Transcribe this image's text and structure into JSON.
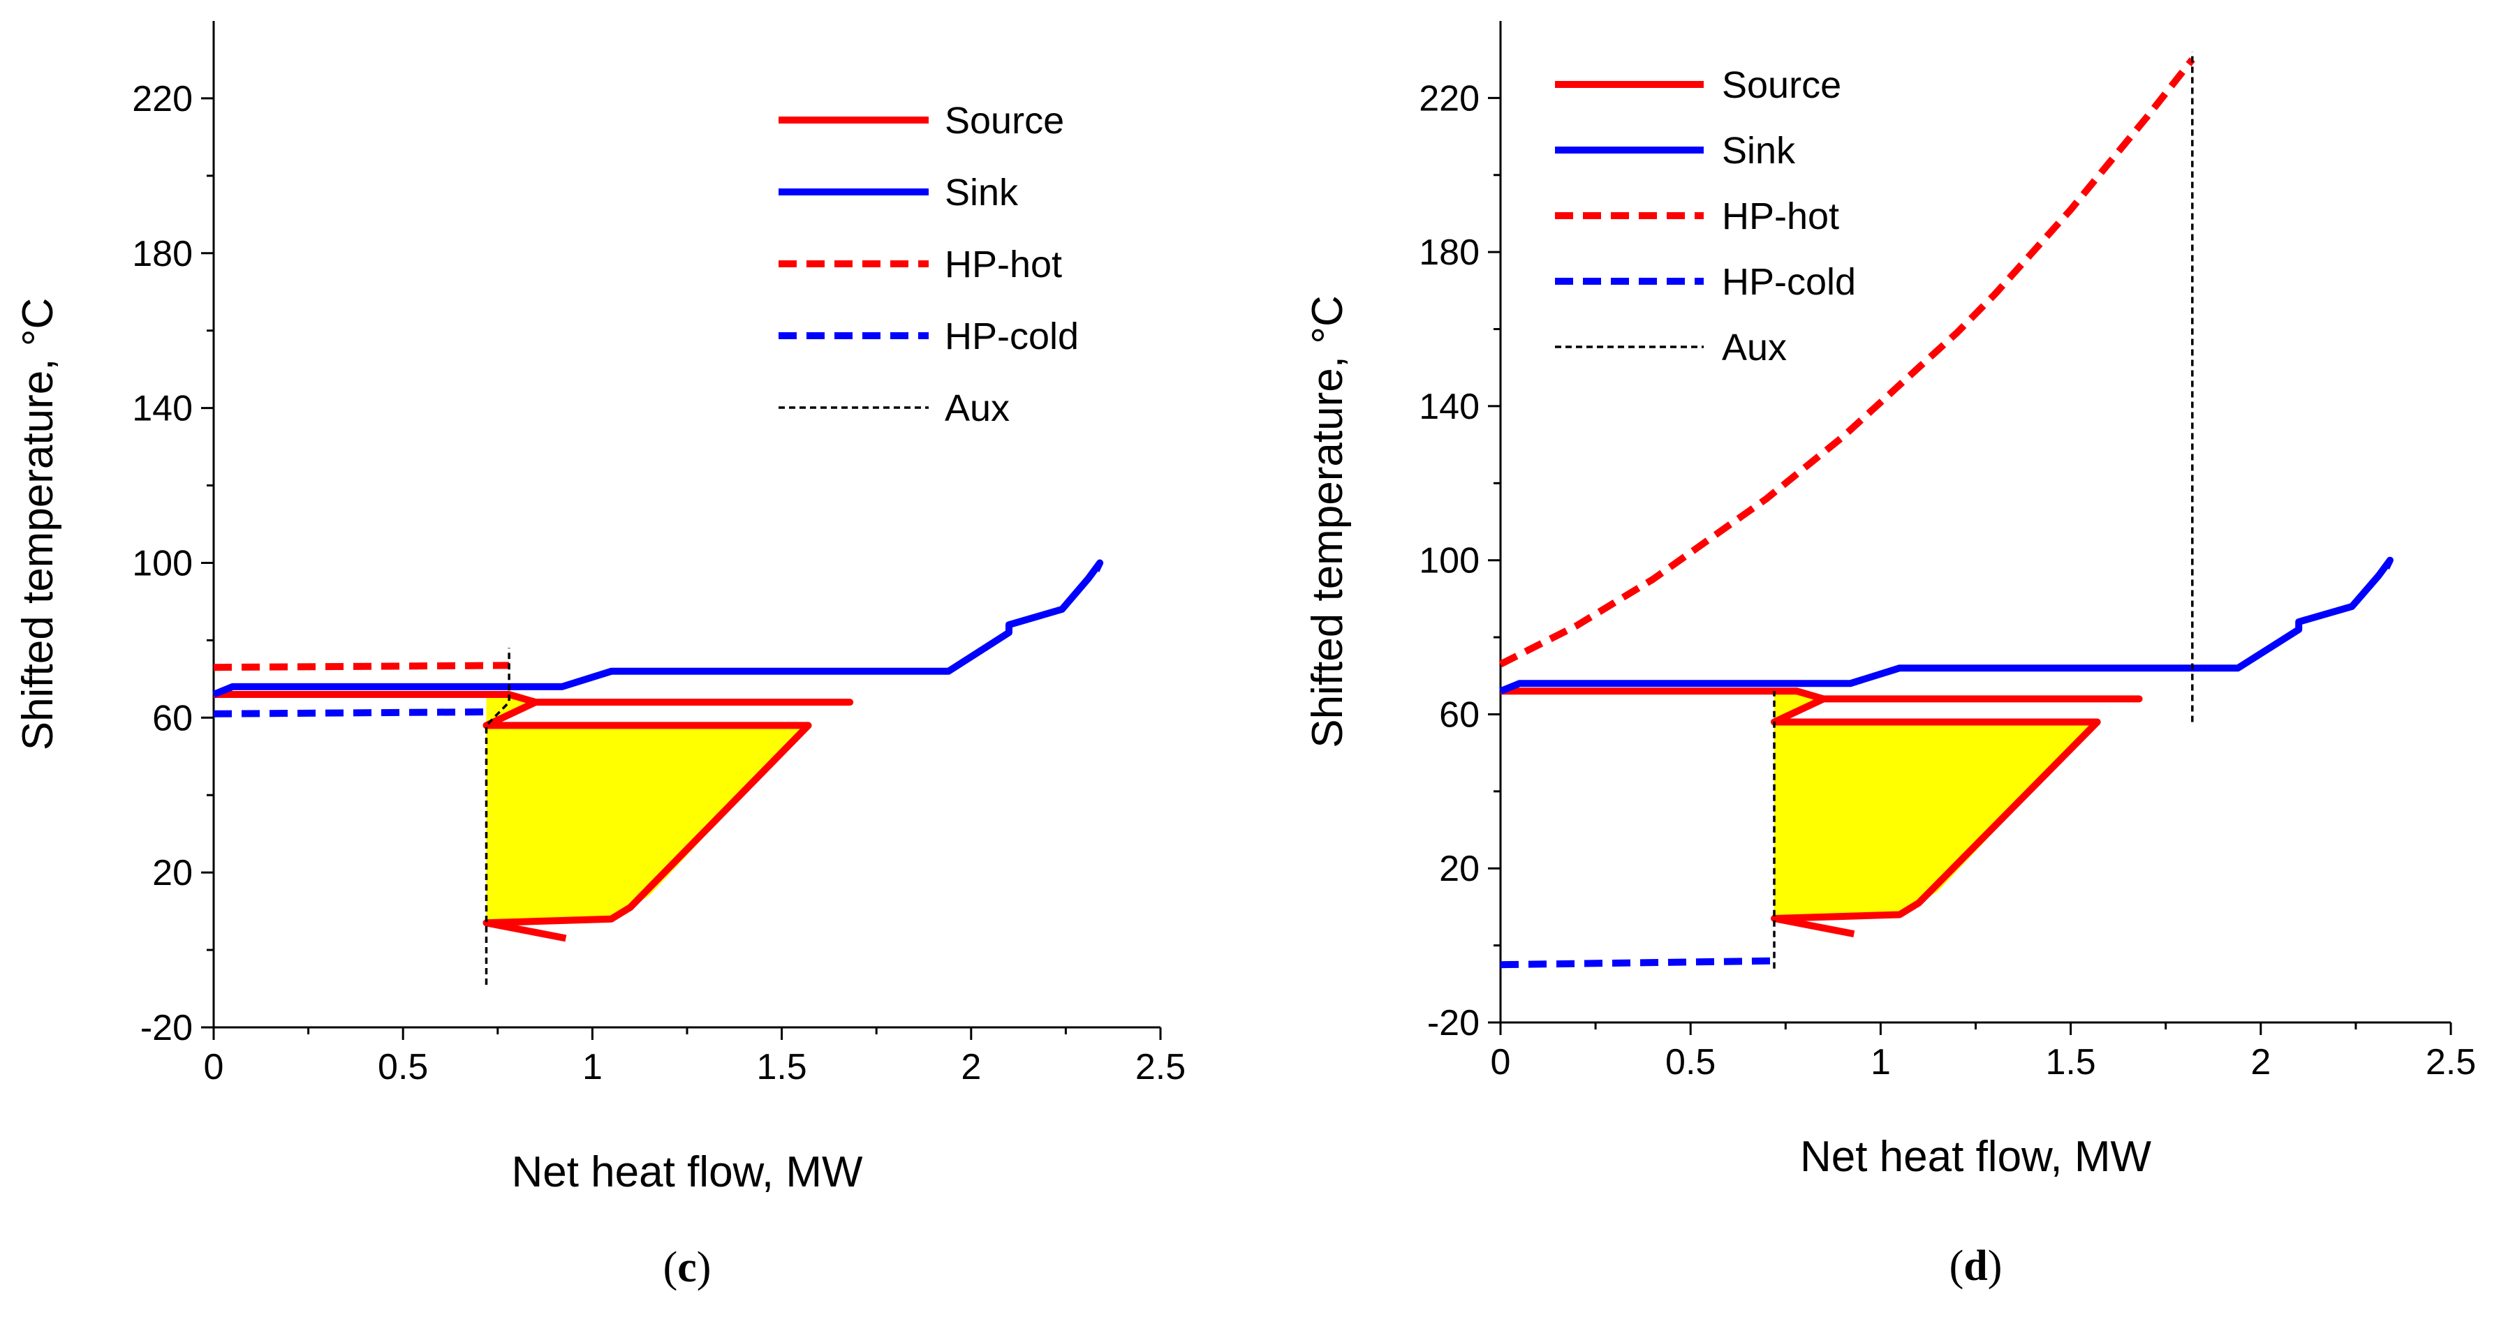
{
  "chart_data": [
    {
      "type": "line",
      "panel_label": "(c)",
      "panel_letter": "c",
      "xlabel": "Net heat flow, MW",
      "ylabel": "Shifted  temperature, °C",
      "xlim": [
        0,
        2.5
      ],
      "ylim": [
        -20,
        240
      ],
      "xticks": [
        0,
        0.5,
        1,
        1.5,
        2,
        2.5
      ],
      "xtick_labels": [
        "0",
        "0.5",
        "1",
        "1.5",
        "2",
        "2.5"
      ],
      "xminor": [
        0.25,
        0.75,
        1.25,
        1.75,
        2.25
      ],
      "yticks": [
        -20,
        20,
        60,
        100,
        140,
        180,
        220
      ],
      "ytick_labels": [
        "-20",
        "20",
        "60",
        "100",
        "140",
        "180",
        "220"
      ],
      "yminor": [
        0,
        40,
        80,
        120,
        160,
        200
      ],
      "legend_position": "top-right",
      "legend": [
        {
          "label": "Source",
          "color": "#ff0000",
          "style": "solid"
        },
        {
          "label": "Sink",
          "color": "#0000ff",
          "style": "solid"
        },
        {
          "label": "HP-hot",
          "color": "#ff0000",
          "style": "dashed"
        },
        {
          "label": "HP-cold",
          "color": "#0000ff",
          "style": "dashed"
        },
        {
          "label": "Aux",
          "color": "#000000",
          "style": "thin-dashed"
        }
      ],
      "fill": {
        "color": "#ffff00",
        "points": [
          [
            0.72,
            66
          ],
          [
            0.72,
            7
          ],
          [
            1.05,
            8
          ],
          [
            1.15,
            14
          ],
          [
            1.57,
            58
          ],
          [
            0.72,
            58
          ],
          [
            0.84,
            64
          ],
          [
            0.78,
            66
          ]
        ]
      },
      "series": [
        {
          "name": "Source",
          "color": "#ff0000",
          "style": "solid",
          "x": [
            0.93,
            0.72,
            1.05,
            1.1,
            1.15,
            1.57,
            0.72,
            0.85,
            1.68,
            0.85,
            0.78,
            0.0
          ],
          "y": [
            3,
            7,
            8,
            11,
            16,
            58,
            58,
            64,
            64,
            64,
            66,
            66
          ]
        },
        {
          "name": "Sink",
          "color": "#0000ff",
          "style": "solid",
          "x": [
            0.0,
            0.05,
            0.92,
            1.05,
            1.94,
            2.1,
            2.1,
            2.24,
            2.31,
            2.34,
            2.33
          ],
          "y": [
            66,
            68,
            68,
            72,
            72,
            82,
            84,
            88,
            96,
            100,
            98
          ]
        },
        {
          "name": "HP-hot",
          "color": "#ff0000",
          "style": "dashed",
          "x": [
            0.0,
            0.78
          ],
          "y": [
            73,
            73.5
          ]
        },
        {
          "name": "HP-cold",
          "color": "#0000ff",
          "style": "dashed",
          "x": [
            0.0,
            0.72
          ],
          "y": [
            61,
            61.5
          ]
        },
        {
          "name": "Aux",
          "color": "#000000",
          "style": "thin-dashed",
          "x": [
            0.72,
            0.72,
            0.78,
            0.78
          ],
          "y": [
            -9,
            58,
            64,
            78
          ]
        }
      ]
    },
    {
      "type": "line",
      "panel_label": "(d)",
      "panel_letter": "d",
      "xlabel": "Net heat flow, MW",
      "ylabel": "Shifted  temperature, °C",
      "xlim": [
        0,
        2.5
      ],
      "ylim": [
        -20,
        240
      ],
      "xticks": [
        0,
        0.5,
        1,
        1.5,
        2,
        2.5
      ],
      "xtick_labels": [
        "0",
        "0.5",
        "1",
        "1.5",
        "2",
        "2.5"
      ],
      "xminor": [
        0.25,
        0.75,
        1.25,
        1.75,
        2.25
      ],
      "yticks": [
        -20,
        20,
        60,
        100,
        140,
        180,
        220
      ],
      "ytick_labels": [
        "-20",
        "20",
        "60",
        "100",
        "140",
        "180",
        "220"
      ],
      "yminor": [
        0,
        40,
        80,
        120,
        160,
        200
      ],
      "legend_position": "top-left",
      "legend": [
        {
          "label": "Source",
          "color": "#ff0000",
          "style": "solid"
        },
        {
          "label": "Sink",
          "color": "#0000ff",
          "style": "solid"
        },
        {
          "label": "HP-hot",
          "color": "#ff0000",
          "style": "dashed"
        },
        {
          "label": "HP-cold",
          "color": "#0000ff",
          "style": "dashed"
        },
        {
          "label": "Aux",
          "color": "#000000",
          "style": "thin-dashed"
        }
      ],
      "fill": {
        "color": "#ffff00",
        "points": [
          [
            0.72,
            66
          ],
          [
            0.72,
            7
          ],
          [
            1.05,
            8
          ],
          [
            1.15,
            14
          ],
          [
            1.57,
            58
          ],
          [
            0.72,
            58
          ],
          [
            0.84,
            64
          ],
          [
            0.78,
            66
          ]
        ]
      },
      "series": [
        {
          "name": "Source",
          "color": "#ff0000",
          "style": "solid",
          "x": [
            0.93,
            0.72,
            1.05,
            1.1,
            1.15,
            1.57,
            0.72,
            0.85,
            1.68,
            0.85,
            0.78,
            0.0
          ],
          "y": [
            3,
            7,
            8,
            11,
            16,
            58,
            58,
            64,
            64,
            64,
            66,
            66
          ]
        },
        {
          "name": "Sink",
          "color": "#0000ff",
          "style": "solid",
          "x": [
            0.0,
            0.05,
            0.92,
            1.05,
            1.94,
            2.1,
            2.1,
            2.24,
            2.31,
            2.34,
            2.33
          ],
          "y": [
            66,
            68,
            68,
            72,
            72,
            82,
            84,
            88,
            96,
            100,
            98
          ]
        },
        {
          "name": "HP-hot",
          "color": "#ff0000",
          "style": "dashed",
          "x": [
            0.0,
            0.1,
            0.2,
            0.3,
            0.4,
            0.5,
            0.6,
            0.7,
            0.8,
            0.9,
            1.0,
            1.1,
            1.2,
            1.3,
            1.4,
            1.5,
            1.6,
            1.7,
            1.82
          ],
          "y": [
            73,
            78,
            83,
            89,
            95,
            102,
            109,
            116,
            124,
            132,
            141,
            150,
            159,
            169,
            180,
            191,
            203,
            215,
            230
          ]
        },
        {
          "name": "HP-cold",
          "color": "#0000ff",
          "style": "dashed",
          "x": [
            0.0,
            0.72
          ],
          "y": [
            -5,
            -4
          ]
        },
        {
          "name": "Aux",
          "color": "#000000",
          "style": "thin-dashed",
          "x": [
            0.72,
            0.72
          ],
          "y": [
            -6,
            66
          ]
        },
        {
          "name": "Aux",
          "color": "#000000",
          "style": "thin-dashed",
          "x": [
            1.82,
            1.82
          ],
          "y": [
            58,
            232
          ]
        }
      ]
    }
  ]
}
